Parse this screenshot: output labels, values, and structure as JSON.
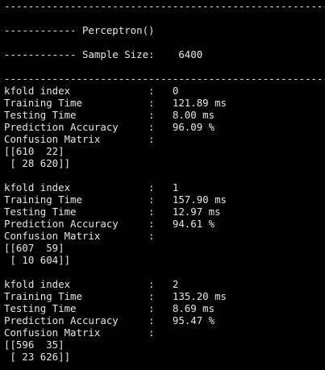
{
  "terminal": {
    "lines": [
      "------------------------------------------------------",
      "",
      "------------ Perceptron()",
      "",
      "------------ Sample Size:    6400",
      "",
      "------------------------------------------------------",
      "kfold index             :   0",
      "Training Time           :   121.89 ms",
      "Testing Time            :   8.00 ms",
      "Prediction Accuracy     :   96.09 %",
      "Confusion Matrix        :",
      "[[610  22]",
      " [ 28 620]]",
      "",
      "kfold index             :   1",
      "Training Time           :   157.90 ms",
      "Testing Time            :   12.97 ms",
      "Prediction Accuracy     :   94.61 %",
      "Confusion Matrix        :",
      "[[607  59]",
      " [ 10 604]]",
      "",
      "kfold index             :   2",
      "Training Time           :   135.20 ms",
      "Testing Time            :   8.69 ms",
      "Prediction Accuracy     :   95.47 %",
      "Confusion Matrix        :",
      "[[596  35]",
      " [ 23 626]]"
    ]
  }
}
